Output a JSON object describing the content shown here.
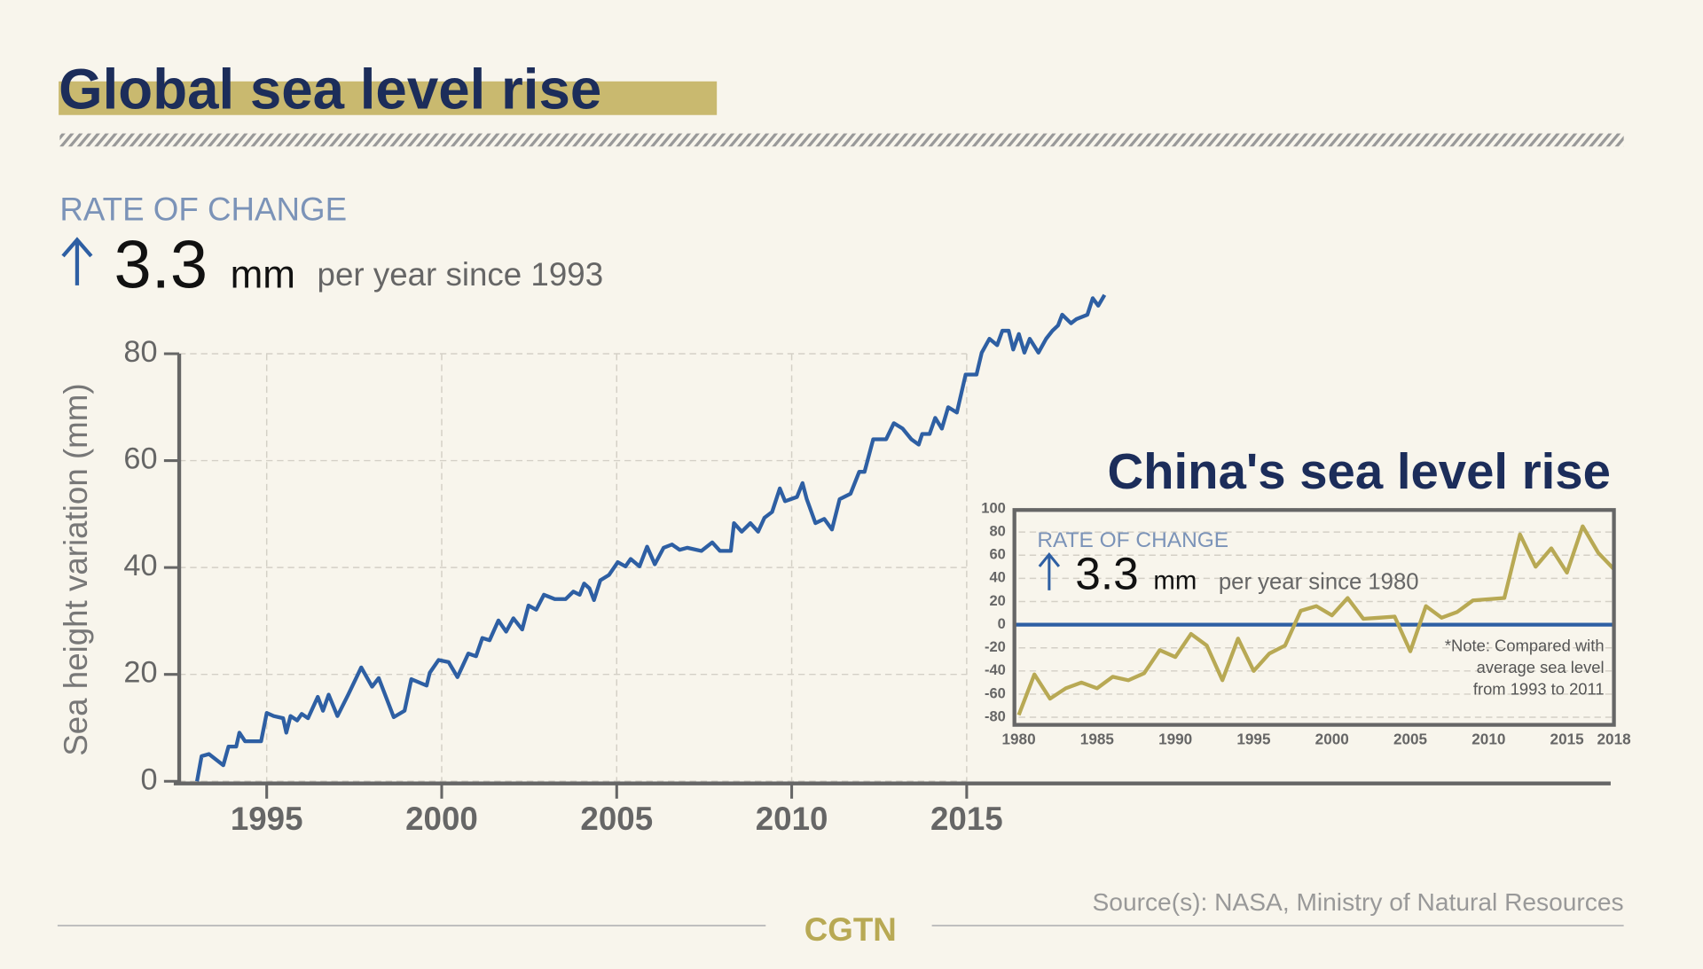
{
  "title": "Global sea level rise",
  "source": "Source(s): NASA, Ministry of Natural Resources",
  "brand": "CGTN",
  "chart_data": [
    {
      "type": "line",
      "rate": {
        "label": "RATE OF CHANGE",
        "value": 3.3,
        "unit": "mm",
        "since": "per year since 1993"
      },
      "y_label": "Sea height variation (mm)",
      "color": "#2e5fa3",
      "x": [
        1993.01,
        1993.14,
        1993.35,
        1993.76,
        1993.91,
        1994.13,
        1994.22,
        1994.38,
        1994.84,
        1995.0,
        1995.2,
        1995.47,
        1995.56,
        1995.68,
        1995.87,
        1996.0,
        1996.18,
        1996.46,
        1996.61,
        1996.77,
        1997.02,
        1997.33,
        1997.7,
        1998.01,
        1998.2,
        1998.63,
        1998.94,
        1999.13,
        1999.57,
        1999.66,
        1999.91,
        2000.2,
        2000.45,
        2000.76,
        2000.98,
        2001.16,
        2001.37,
        2001.62,
        2001.84,
        2002.05,
        2002.3,
        2002.48,
        2002.7,
        2002.92,
        2003.23,
        2003.54,
        2003.76,
        2003.94,
        2004.07,
        2004.22,
        2004.35,
        2004.53,
        2004.78,
        2005.03,
        2005.25,
        2005.4,
        2005.65,
        2005.87,
        2006.09,
        2006.34,
        2006.58,
        2006.8,
        2007.02,
        2007.42,
        2007.73,
        2007.95,
        2008.26,
        2008.35,
        2008.57,
        2008.82,
        2009.04,
        2009.22,
        2009.44,
        2009.66,
        2009.81,
        2010.15,
        2010.31,
        2010.43,
        2010.68,
        2010.93,
        2011.15,
        2011.37,
        2011.68,
        2011.93,
        2012.08,
        2012.33,
        2012.7,
        2012.92,
        2013.17,
        2013.42,
        2013.63,
        2013.73,
        2013.94,
        2014.1,
        2014.29,
        2014.47,
        2014.72,
        2014.97,
        2015.28,
        2015.43,
        2015.65,
        2015.87,
        2016.02,
        2016.2,
        2016.33,
        2016.49,
        2016.65,
        2016.8,
        2017.05,
        2017.27,
        2017.45,
        2017.61,
        2017.73,
        2017.98,
        2018.14,
        2018.45,
        2018.6,
        2018.76,
        2018.94
      ],
      "values": [
        0,
        4.7,
        5.1,
        3.0,
        6.5,
        6.5,
        9.1,
        7.5,
        7.5,
        12.8,
        12.2,
        11.8,
        9.1,
        12.2,
        11.4,
        12.6,
        11.8,
        15.8,
        13.2,
        16.2,
        12.2,
        16.2,
        21.3,
        17.7,
        19.3,
        12.0,
        13.2,
        19.1,
        17.9,
        20.3,
        22.7,
        22.3,
        19.5,
        23.9,
        23.4,
        26.8,
        26.4,
        30.1,
        28.0,
        30.5,
        28.4,
        32.9,
        32.1,
        34.9,
        34.1,
        34.1,
        35.5,
        34.9,
        37.0,
        36.1,
        33.9,
        37.6,
        38.6,
        41.0,
        40.2,
        41.6,
        40.2,
        43.9,
        40.6,
        43.7,
        44.3,
        43.3,
        43.7,
        43.1,
        44.7,
        43.1,
        43.1,
        48.3,
        46.7,
        48.3,
        46.7,
        49.3,
        50.4,
        54.8,
        52.4,
        53.2,
        55.8,
        52.8,
        48.3,
        49.1,
        47.1,
        52.8,
        53.8,
        57.9,
        57.9,
        64.0,
        64.0,
        67.0,
        66.0,
        64.0,
        63.0,
        65.0,
        65.0,
        68.0,
        66.0,
        70.0,
        69.0,
        76.1,
        76.1,
        80.2,
        82.8,
        81.6,
        84.3,
        84.3,
        80.8,
        83.7,
        80.2,
        82.8,
        80.2,
        82.8,
        84.3,
        85.3,
        87.3,
        85.7,
        86.5,
        87.3,
        90.4,
        89.0,
        91.0
      ],
      "xlim": [
        1992.5,
        2033.4
      ],
      "xticks": [
        1995,
        2000,
        2005,
        2010,
        2015
      ],
      "ylim": [
        0,
        80
      ],
      "yticks": [
        0,
        20,
        40,
        60,
        80
      ],
      "grid": true
    },
    {
      "type": "line",
      "title": "China's sea level rise",
      "rate": {
        "label": "RATE OF CHANGE",
        "value": 3.3,
        "unit": "mm",
        "since": "per year since 1980"
      },
      "note": [
        "*Note: Compared with",
        "average sea level",
        "from 1993 to 2011"
      ],
      "color": "#b8a954",
      "x": [
        1980,
        1981,
        1982,
        1983,
        1984,
        1985,
        1986,
        1987,
        1988,
        1989,
        1990,
        1991,
        1992,
        1993,
        1994,
        1995,
        1996,
        1997,
        1998,
        1999,
        2000,
        2001,
        2002,
        2003,
        2004,
        2005,
        2006,
        2007,
        2008,
        2009,
        2010,
        2011,
        2012,
        2013,
        2014,
        2015,
        2016,
        2017,
        2018
      ],
      "values": [
        -78,
        -43,
        -64,
        -55,
        -50,
        -55,
        -45,
        -48,
        -42,
        -22,
        -28,
        -8,
        -18,
        -48,
        -12,
        -40,
        -25,
        -18,
        12,
        16,
        8,
        23,
        5,
        6,
        7,
        -23,
        16,
        6,
        11,
        21,
        22,
        23,
        78,
        50,
        66,
        45,
        85,
        62,
        48
      ],
      "xlim": [
        1980,
        2018
      ],
      "xticks": [
        1980,
        1985,
        1990,
        1995,
        2000,
        2005,
        2010,
        2015,
        2018
      ],
      "ylim": [
        -80,
        100
      ],
      "yticks": [
        100,
        80,
        60,
        40,
        20,
        0,
        -20,
        -40,
        -60,
        -80
      ],
      "grid": true,
      "reference_line": {
        "value": 0,
        "color": "#2e5fa3"
      }
    }
  ]
}
